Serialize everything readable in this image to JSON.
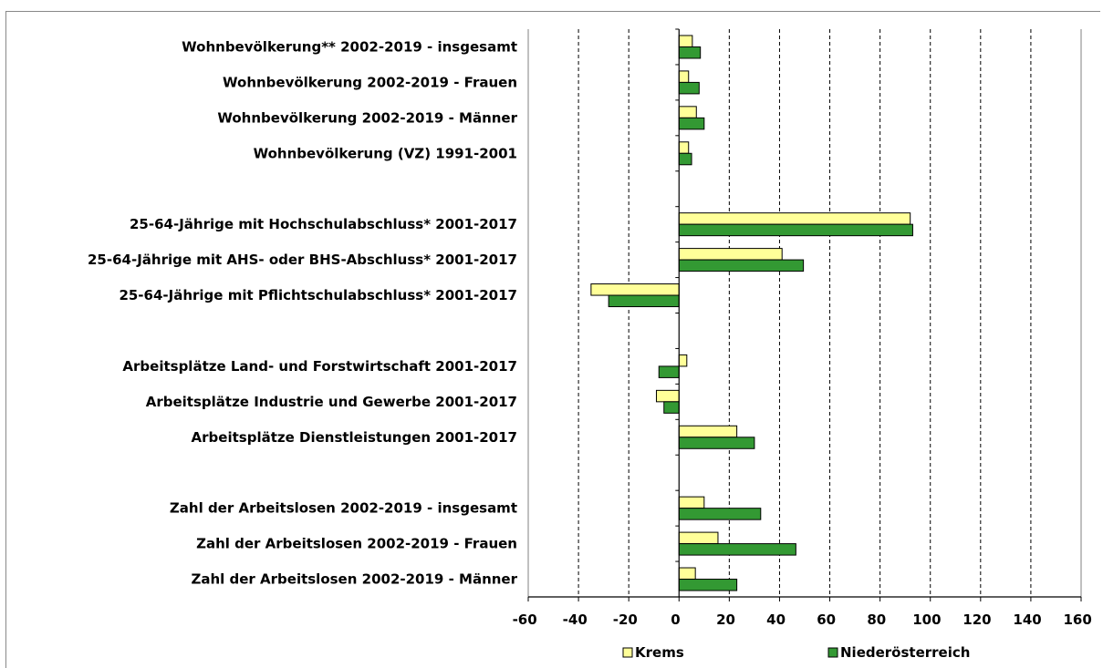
{
  "chart_data": {
    "type": "bar",
    "orientation": "horizontal",
    "categories": [
      "Wohnbevölkerung** 2002-2019 - insgesamt",
      "Wohnbevölkerung 2002-2019 - Frauen",
      "Wohnbevölkerung 2002-2019 - Männer",
      "Wohnbevölkerung (VZ) 1991-2001",
      "",
      "25-64-Jährige mit Hochschulabschluss* 2001-2017",
      "25-64-Jährige mit AHS- oder BHS-Abschluss* 2001-2017",
      "25-64-Jährige mit Pflichtschulabschluss* 2001-2017",
      "",
      "Arbeitsplätze Land- und Forstwirtschaft 2001-2017",
      "Arbeitsplätze Industrie und Gewerbe 2001-2017",
      "Arbeitsplätze Dienstleistungen 2001-2017",
      "",
      "Zahl der Arbeitslosen 2002-2019 - insgesamt",
      "Zahl der Arbeitslosen 2002-2019 - Frauen",
      "Zahl der Arbeitslosen 2002-2019 - Männer"
    ],
    "series": [
      {
        "name": "Krems",
        "color": "#ffff99",
        "values": [
          5.3,
          3.8,
          6.9,
          3.8,
          null,
          92,
          41,
          -35,
          null,
          3.1,
          -9,
          23,
          null,
          10,
          15.5,
          6.5
        ]
      },
      {
        "name": "Niederösterreich",
        "color": "#339933",
        "values": [
          8.5,
          8,
          10,
          5,
          null,
          93,
          49.5,
          -28,
          null,
          -8,
          -6,
          30,
          null,
          32.5,
          46.5,
          23
        ]
      }
    ],
    "xlim": [
      -60,
      160
    ],
    "xticks": [
      -60,
      -40,
      -20,
      0,
      20,
      40,
      60,
      80,
      100,
      120,
      140,
      160
    ],
    "grid": "vertical dashed",
    "legend_position": "bottom"
  }
}
